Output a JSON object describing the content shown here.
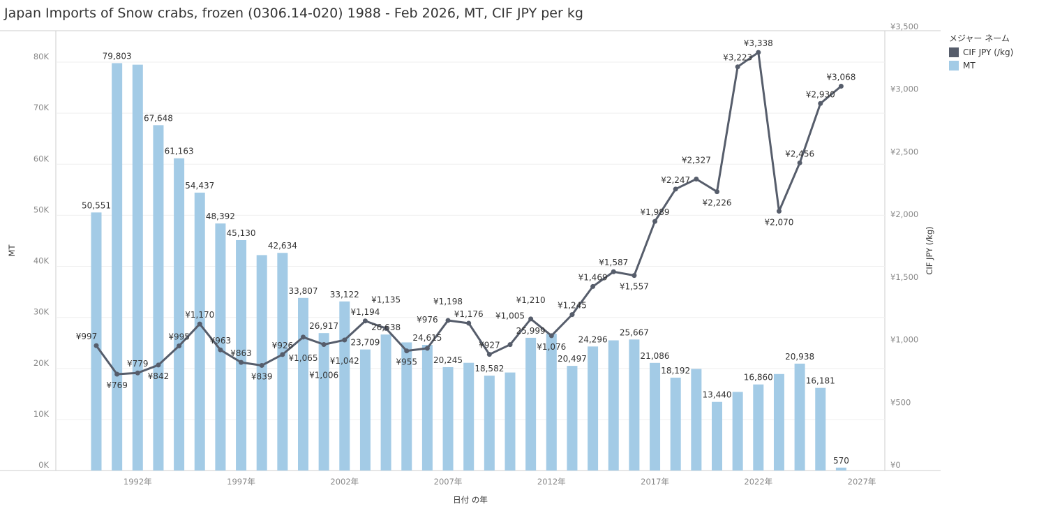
{
  "title": "Japan Imports of Snow crabs, frozen (0306.14-020) 1988 - Feb 2026, MT, CIF JPY per kg",
  "legend": {
    "title": "メジャー ネーム",
    "items": [
      {
        "label": "CIF JPY (/kg)",
        "color": "#565d6b"
      },
      {
        "label": "MT",
        "color": "#a3cbe6"
      }
    ]
  },
  "chart_data": {
    "type": "bar+line",
    "xlabel": "日付 の年",
    "ylabel_left": "MT",
    "ylabel_right": "CIF JPY (/kg)",
    "x_ticks": [
      "1992年",
      "1997年",
      "2002年",
      "2007年",
      "2012年",
      "2017年",
      "2022年",
      "2027年"
    ],
    "y_left_ticks": [
      "0K",
      "10K",
      "20K",
      "30K",
      "40K",
      "50K",
      "60K",
      "70K",
      "80K"
    ],
    "y_right_ticks": [
      "¥0",
      "¥500",
      "¥1,000",
      "¥1,500",
      "¥2,000",
      "¥2,500",
      "¥3,000",
      "¥3,500"
    ],
    "ylim_left": [
      0,
      80000
    ],
    "ylim_right": [
      0,
      3500
    ],
    "grid": true,
    "legend_position": "top-right",
    "years": [
      1990,
      1991,
      1992,
      1993,
      1994,
      1995,
      1996,
      1997,
      1998,
      1999,
      2000,
      2001,
      2002,
      2003,
      2004,
      2005,
      2006,
      2007,
      2008,
      2009,
      2010,
      2011,
      2012,
      2013,
      2014,
      2015,
      2016,
      2017,
      2018,
      2019,
      2020,
      2021,
      2022,
      2023,
      2024,
      2025,
      2026
    ],
    "series": [
      {
        "name": "MT",
        "kind": "bar",
        "color": "#a3cbe6",
        "values": [
          50551,
          79803,
          79500,
          67648,
          61163,
          54437,
          48392,
          45130,
          42200,
          42634,
          33807,
          26917,
          33122,
          23709,
          26638,
          25100,
          24615,
          20245,
          21100,
          18582,
          19200,
          25999,
          26800,
          20497,
          24296,
          25500,
          25667,
          21086,
          18192,
          19900,
          13440,
          15400,
          16860,
          18900,
          20938,
          16181,
          570
        ],
        "labels": [
          "50,551",
          "79,803",
          null,
          "67,648",
          "61,163",
          "54,437",
          "48,392",
          "45,130",
          null,
          "42,634",
          "33,807",
          "26,917",
          "33,122",
          "23,709",
          "26,638",
          null,
          "24,615",
          "20,245",
          null,
          "18,582",
          null,
          "25,999",
          null,
          "20,497",
          "24,296",
          null,
          "25,667",
          "21,086",
          "18,192",
          null,
          "13,440",
          null,
          "16,860",
          null,
          "20,938",
          "16,181",
          "570"
        ]
      },
      {
        "name": "CIF JPY (/kg)",
        "kind": "line",
        "color": "#565d6b",
        "values": [
          997,
          769,
          779,
          842,
          995,
          1170,
          963,
          863,
          839,
          926,
          1065,
          1006,
          1042,
          1194,
          1135,
          955,
          976,
          1198,
          1176,
          927,
          1005,
          1210,
          1076,
          1245,
          1469,
          1587,
          1557,
          1989,
          2247,
          2327,
          2226,
          3223,
          3338,
          2070,
          2456,
          2930,
          3068
        ],
        "labels": [
          "¥997",
          "¥769",
          "¥779",
          "¥842",
          "¥995",
          "¥1,170",
          "¥963",
          "¥863",
          "¥839",
          "¥926",
          "¥1,065",
          "¥1,006",
          "¥1,042",
          "¥1,194",
          "¥1,135",
          "¥955",
          "¥976",
          "¥1,198",
          "¥1,176",
          "¥927",
          "¥1,005",
          "¥1,210",
          "¥1,076",
          "¥1,245",
          "¥1,469",
          "¥1,587",
          "¥1,557",
          "¥1,989",
          "¥2,247",
          "¥2,327",
          "¥2,226",
          "¥3,223",
          "¥3,338",
          "¥2,070",
          "¥2,456",
          "¥2,930",
          "¥3,068"
        ]
      }
    ]
  }
}
